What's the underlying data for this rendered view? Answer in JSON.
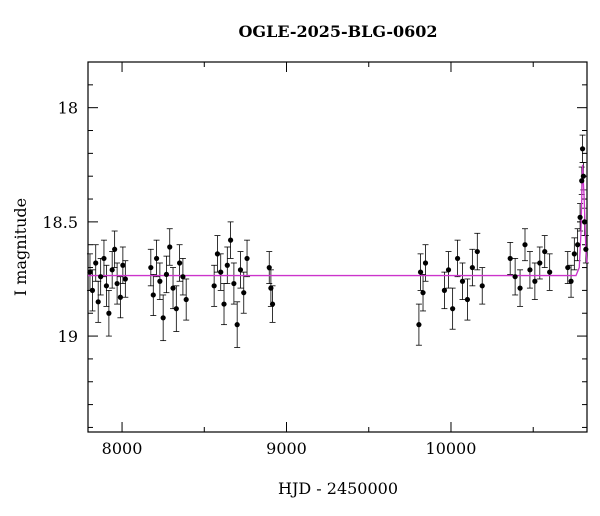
{
  "chart_data": {
    "type": "scatter",
    "title": "OGLE-2025-BLG-0602",
    "x_label": "HJD - 2450000",
    "y_label": "I magnitude",
    "xlim": [
      7793,
      10827
    ],
    "ylim": [
      17.8,
      19.42
    ],
    "y_inverted": true,
    "xticks": [
      8000,
      9000,
      10000
    ],
    "xticks_minor": [
      8500,
      9500,
      10500
    ],
    "yticks": [
      18,
      18.5,
      19
    ],
    "yticks_minor": [
      17.9,
      18.1,
      18.2,
      18.3,
      18.4,
      18.6,
      18.7,
      18.8,
      18.9,
      19.1,
      19.2,
      19.3,
      19.4
    ],
    "points": {
      "color": "#000000",
      "x": [
        7805,
        7820,
        7840,
        7855,
        7870,
        7890,
        7905,
        7920,
        7940,
        7955,
        7970,
        7990,
        8005,
        8020,
        8175,
        8190,
        8210,
        8230,
        8250,
        8270,
        8290,
        8310,
        8330,
        8350,
        8370,
        8390,
        8560,
        8580,
        8600,
        8620,
        8640,
        8660,
        8680,
        8700,
        8720,
        8740,
        8760,
        8895,
        8905,
        8915,
        9805,
        9815,
        9830,
        9845,
        9960,
        9985,
        10010,
        10040,
        10070,
        10100,
        10130,
        10160,
        10190,
        10360,
        10390,
        10420,
        10450,
        10480,
        10510,
        10540,
        10570,
        10600,
        10710,
        10730,
        10750,
        10770,
        10785,
        10795,
        10800,
        10805,
        10812,
        10820
      ],
      "y": [
        18.72,
        18.8,
        18.68,
        18.85,
        18.74,
        18.66,
        18.78,
        18.9,
        18.71,
        18.62,
        18.77,
        18.83,
        18.69,
        18.75,
        18.7,
        18.82,
        18.66,
        18.76,
        18.92,
        18.73,
        18.61,
        18.79,
        18.88,
        18.68,
        18.74,
        18.84,
        18.78,
        18.64,
        18.72,
        18.86,
        18.69,
        18.58,
        18.77,
        18.95,
        18.71,
        18.81,
        18.66,
        18.7,
        18.79,
        18.86,
        18.95,
        18.72,
        18.81,
        18.68,
        18.8,
        18.71,
        18.88,
        18.66,
        18.76,
        18.84,
        18.7,
        18.63,
        18.78,
        18.66,
        18.74,
        18.79,
        18.6,
        18.71,
        18.76,
        18.68,
        18.63,
        18.72,
        18.7,
        18.76,
        18.64,
        18.6,
        18.48,
        18.32,
        18.18,
        18.3,
        18.5,
        18.62
      ],
      "errors": [
        0.08,
        0.09,
        0.08,
        0.09,
        0.08,
        0.08,
        0.09,
        0.1,
        0.08,
        0.08,
        0.09,
        0.09,
        0.08,
        0.08,
        0.08,
        0.09,
        0.08,
        0.08,
        0.1,
        0.08,
        0.08,
        0.09,
        0.1,
        0.08,
        0.08,
        0.09,
        0.09,
        0.08,
        0.08,
        0.09,
        0.08,
        0.08,
        0.09,
        0.1,
        0.08,
        0.09,
        0.08,
        0.07,
        0.08,
        0.08,
        0.09,
        0.08,
        0.08,
        0.08,
        0.08,
        0.08,
        0.09,
        0.08,
        0.08,
        0.09,
        0.08,
        0.08,
        0.08,
        0.07,
        0.08,
        0.08,
        0.07,
        0.08,
        0.08,
        0.07,
        0.07,
        0.08,
        0.07,
        0.07,
        0.07,
        0.07,
        0.06,
        0.06,
        0.06,
        0.06,
        0.06,
        0.06
      ]
    },
    "model": {
      "color": "#cc33cc",
      "x": [
        7793,
        10760,
        10780,
        10790,
        10800,
        10810,
        10820,
        10827
      ],
      "y": [
        18.735,
        18.735,
        18.7,
        18.55,
        18.25,
        18.4,
        18.62,
        18.68
      ]
    }
  }
}
